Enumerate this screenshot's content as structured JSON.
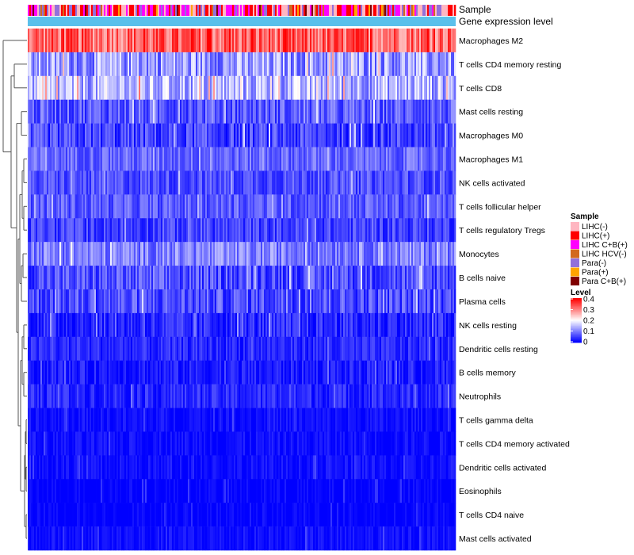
{
  "chart_data": {
    "type": "heatmap",
    "annotation_tracks": [
      "Sample",
      "Gene expression level"
    ],
    "rows": [
      {
        "name": "Macrophages M2",
        "level": 0.32,
        "spread": 0.07
      },
      {
        "name": "T cells CD4 memory resting",
        "level": 0.12,
        "spread": 0.07
      },
      {
        "name": "T cells CD8",
        "level": 0.14,
        "spread": 0.07
      },
      {
        "name": "Mast cells resting",
        "level": 0.07,
        "spread": 0.05
      },
      {
        "name": "Macrophages M0",
        "level": 0.05,
        "spread": 0.05
      },
      {
        "name": "Macrophages M1",
        "level": 0.08,
        "spread": 0.04
      },
      {
        "name": "NK cells activated",
        "level": 0.06,
        "spread": 0.04
      },
      {
        "name": "T cells follicular helper",
        "level": 0.07,
        "spread": 0.04
      },
      {
        "name": "T cells regulatory  Tregs",
        "level": 0.05,
        "spread": 0.04
      },
      {
        "name": "Monocytes",
        "level": 0.1,
        "spread": 0.05
      },
      {
        "name": "B cells naive",
        "level": 0.06,
        "spread": 0.05
      },
      {
        "name": "Plasma cells",
        "level": 0.06,
        "spread": 0.05
      },
      {
        "name": "NK cells resting",
        "level": 0.03,
        "spread": 0.04
      },
      {
        "name": "Dendritic cells resting",
        "level": 0.03,
        "spread": 0.03
      },
      {
        "name": "B cells memory",
        "level": 0.02,
        "spread": 0.03
      },
      {
        "name": "Neutrophils",
        "level": 0.03,
        "spread": 0.03
      },
      {
        "name": "T cells gamma delta",
        "level": 0.01,
        "spread": 0.02
      },
      {
        "name": "T cells CD4 memory activated",
        "level": 0.01,
        "spread": 0.02
      },
      {
        "name": "Dendritic cells activated",
        "level": 0.01,
        "spread": 0.02
      },
      {
        "name": "Eosinophils",
        "level": 0.0,
        "spread": 0.02
      },
      {
        "name": "T cells CD4 naive",
        "level": 0.0,
        "spread": 0.02
      },
      {
        "name": "Mast cells activated",
        "level": 0.01,
        "spread": 0.02
      }
    ],
    "sample_legend": {
      "title": "Sample",
      "items": [
        {
          "label": "LIHC(-)",
          "color": "#ffb6c1"
        },
        {
          "label": "LIHC(+)",
          "color": "#ff0000"
        },
        {
          "label": "LIHC C+B(+)",
          "color": "#ff00ff"
        },
        {
          "label": "LIHC HCV(-)",
          "color": "#d2691e"
        },
        {
          "label": "Para(-)",
          "color": "#9370db"
        },
        {
          "label": "Para(+)",
          "color": "#ffa500"
        },
        {
          "label": "Para C+B(+)",
          "color": "#800000"
        }
      ]
    },
    "level_legend": {
      "title": "Level",
      "ticks": [
        "0.4",
        "0.3",
        "0.2",
        "0.1",
        "0"
      ],
      "range": [
        0,
        0.4
      ]
    },
    "expression_color": "#5bc0eb",
    "colorscale": [
      "#0000ff",
      "#ffffff",
      "#ff0000"
    ]
  }
}
